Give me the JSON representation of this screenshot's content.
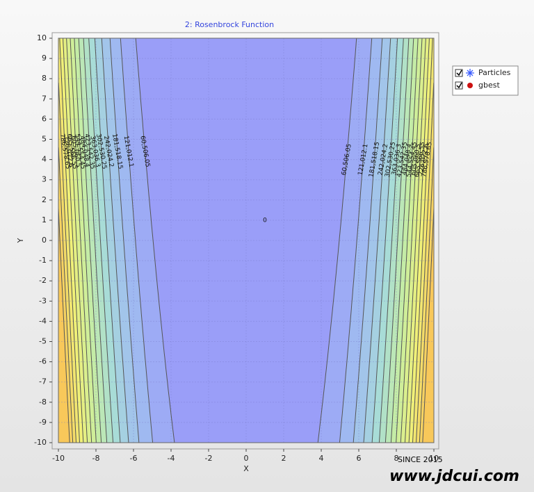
{
  "chart_data": {
    "type": "contour",
    "title": "2: Rosenbrock Function",
    "xlabel": "X",
    "ylabel": "Y",
    "xlim": [
      -10,
      10
    ],
    "ylim": [
      -10,
      10
    ],
    "xticks": [
      -10,
      -8,
      -6,
      -4,
      -2,
      0,
      2,
      4,
      6,
      8,
      10
    ],
    "yticks": [
      -10,
      -9,
      -8,
      -7,
      -6,
      -5,
      -4,
      -3,
      -2,
      -1,
      0,
      1,
      2,
      3,
      4,
      5,
      6,
      7,
      8,
      9,
      10
    ],
    "grid": true,
    "levels": [
      0,
      {
        "value": 60506.05,
        "label": "60,506.05"
      },
      {
        "value": 121012.1,
        "label": "121,012.1"
      },
      {
        "value": 181518.15,
        "label": "181,518.15"
      },
      {
        "value": 242024.2,
        "label": "242,024.2"
      },
      {
        "value": 302530.25,
        "label": "302,530.25"
      },
      {
        "value": 363036.3,
        "label": "363,036.3"
      },
      {
        "value": 423542.35,
        "label": "423,542.35"
      },
      {
        "value": 484048.4,
        "label": "484,048.4"
      },
      {
        "value": 544554.45,
        "label": "544,554.45"
      },
      {
        "value": 605060.5,
        "label": "605,060.5"
      },
      {
        "value": 665566.55,
        "label": "665,566.55"
      },
      {
        "value": 726072.6,
        "label": "726,072.6"
      },
      {
        "value": 786578.65,
        "label": "786,578.65"
      },
      {
        "value": 847084.7,
        "label": "847,084.7"
      },
      {
        "value": 907590.75,
        "label": "907,590.75"
      },
      {
        "value": 968096.8,
        "label": "968,096.8"
      }
    ],
    "legend": {
      "position": "right",
      "items": [
        {
          "name": "Particles",
          "color": "#3a5cff"
        },
        {
          "name": "gbest",
          "color": "#cc1111"
        }
      ]
    },
    "watermark": [
      "SINCE 2015",
      "www.jdcui.com"
    ]
  }
}
